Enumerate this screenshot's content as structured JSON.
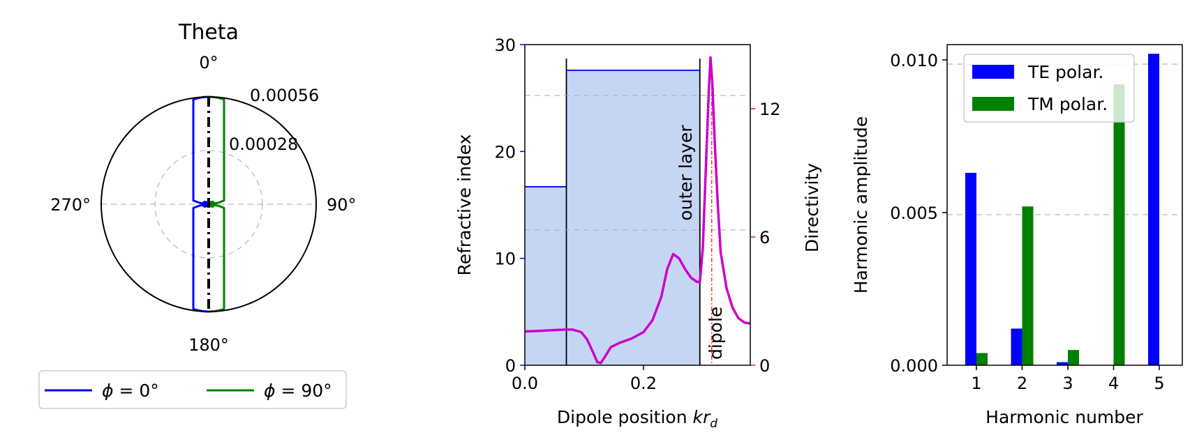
{
  "chart_data": [
    {
      "type": "polar",
      "title": "Theta",
      "angle_tick_labels": [
        "0°",
        "90°",
        "180°",
        "270°"
      ],
      "radial_tick_labels": [
        "0.00028",
        "0.00056"
      ],
      "rmax": 0.00056,
      "series": [
        {
          "name": "φ = 0°",
          "color": "#0000ff"
        },
        {
          "name": "φ = 90°",
          "color": "#008000"
        }
      ],
      "legend": [
        {
          "symbol": "ϕ",
          "rest": " = 0°",
          "color": "#0000ff"
        },
        {
          "symbol": "ϕ",
          "rest": " = 90°",
          "color": "#008000"
        }
      ],
      "legend_position": "below"
    },
    {
      "type": "line",
      "xlabel": {
        "main": "Dipole position ",
        "math": "kr",
        "sub": "d"
      },
      "ylabel_left": "Refractive index",
      "ylabel_right": "Directivity",
      "xlim": [
        0,
        0.38
      ],
      "ylim_left": [
        0,
        30
      ],
      "ylim_right": [
        0,
        15
      ],
      "x_ticks": [
        "0.0",
        "0.2"
      ],
      "y_ticks_left": [
        "0",
        "10",
        "20",
        "30"
      ],
      "y_ticks_right": [
        "0",
        "6",
        "12"
      ],
      "left_color": "#0000ff",
      "right_color": "#cc00cc",
      "layers": [
        {
          "x0": 0.0,
          "x1": 0.07,
          "n": 16.7
        },
        {
          "x0": 0.07,
          "x1": 0.295,
          "n": 27.6
        }
      ],
      "layer_annotation": "outer layer",
      "dipole_x": 0.315,
      "dipole_label": "dipole",
      "directivity": {
        "x": [
          0.0,
          0.02,
          0.04,
          0.06,
          0.08,
          0.095,
          0.105,
          0.115,
          0.122,
          0.128,
          0.135,
          0.145,
          0.16,
          0.18,
          0.2,
          0.215,
          0.23,
          0.24,
          0.25,
          0.26,
          0.27,
          0.28,
          0.29,
          0.295,
          0.3,
          0.305,
          0.31,
          0.313,
          0.316,
          0.32,
          0.325,
          0.33,
          0.34,
          0.35,
          0.36,
          0.37,
          0.38
        ],
        "y": [
          1.58,
          1.6,
          1.63,
          1.66,
          1.67,
          1.55,
          1.2,
          0.6,
          0.15,
          0.1,
          0.4,
          0.85,
          1.05,
          1.25,
          1.55,
          2.1,
          3.2,
          4.5,
          5.2,
          5.0,
          4.5,
          4.1,
          3.9,
          3.9,
          5.5,
          9.2,
          12.8,
          14.4,
          13.2,
          10.5,
          7.6,
          5.3,
          3.6,
          2.7,
          2.2,
          2.0,
          1.95
        ]
      }
    },
    {
      "type": "bar",
      "xlabel": "Harmonic number",
      "ylabel": "Harmonic amplitude",
      "categories": [
        "1",
        "2",
        "3",
        "4",
        "5"
      ],
      "ylim": [
        0,
        0.0105
      ],
      "y_ticks": [
        "0.000",
        "0.005",
        "0.010"
      ],
      "series": [
        {
          "name": "TE polar.",
          "color": "#0000ff",
          "values": [
            0.0063,
            0.0012,
            0.0001,
            0.0,
            0.0102
          ]
        },
        {
          "name": "TM polar.",
          "color": "#008000",
          "values": [
            0.0004,
            0.0052,
            0.0005,
            0.0092,
            0.0
          ]
        }
      ],
      "legend_position": "top-left"
    }
  ]
}
